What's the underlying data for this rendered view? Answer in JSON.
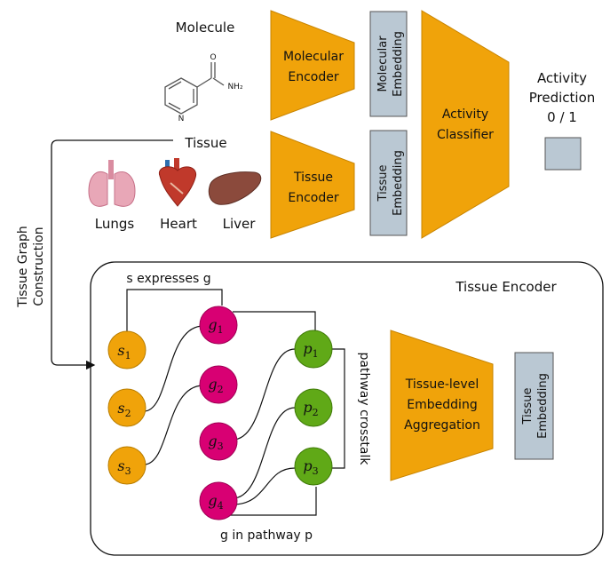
{
  "top": {
    "molecule_label": "Molecule",
    "molecule_nh2": "NH₂",
    "molecule_o": "O",
    "molecule_n": "N",
    "molecular_encoder_l1": "Molecular",
    "molecular_encoder_l2": "Encoder",
    "molecular_embedding_l1": "Molecular",
    "molecular_embedding_l2": "Embedding",
    "tissue_label": "Tissue",
    "organs": [
      "Lungs",
      "Heart",
      "Liver"
    ],
    "tissue_encoder_l1": "Tissue",
    "tissue_encoder_l2": "Encoder",
    "tissue_embedding_l1": "Tissue",
    "tissue_embedding_l2": "Embedding",
    "classifier_l1": "Activity",
    "classifier_l2": "Classifier",
    "prediction_l1": "Activity",
    "prediction_l2": "Prediction",
    "prediction_l3": "0 / 1"
  },
  "side": {
    "graph_construction_l1": "Tissue Graph",
    "graph_construction_l2": "Construction"
  },
  "bottom": {
    "panel_title": "Tissue Encoder",
    "edge_sg": "s expresses g",
    "edge_gp": "g in pathway p",
    "crosstalk": "pathway crosstalk",
    "aggregation_l1": "Tissue-level",
    "aggregation_l2": "Embedding",
    "aggregation_l3": "Aggregation",
    "embedding_l1": "Tissue",
    "embedding_l2": "Embedding",
    "s_nodes": [
      {
        "base": "s",
        "sub": "1"
      },
      {
        "base": "s",
        "sub": "2"
      },
      {
        "base": "s",
        "sub": "3"
      }
    ],
    "g_nodes": [
      {
        "base": "g",
        "sub": "1"
      },
      {
        "base": "g",
        "sub": "2"
      },
      {
        "base": "g",
        "sub": "3"
      },
      {
        "base": "g",
        "sub": "4"
      }
    ],
    "p_nodes": [
      {
        "base": "p",
        "sub": "1"
      },
      {
        "base": "p",
        "sub": "2"
      },
      {
        "base": "p",
        "sub": "3"
      }
    ]
  },
  "colors": {
    "encoder": "#f0a30a",
    "embedding": "#bac8d3",
    "s_node": "#f0a30a",
    "g_node": "#d80073",
    "p_node": "#60a917"
  }
}
